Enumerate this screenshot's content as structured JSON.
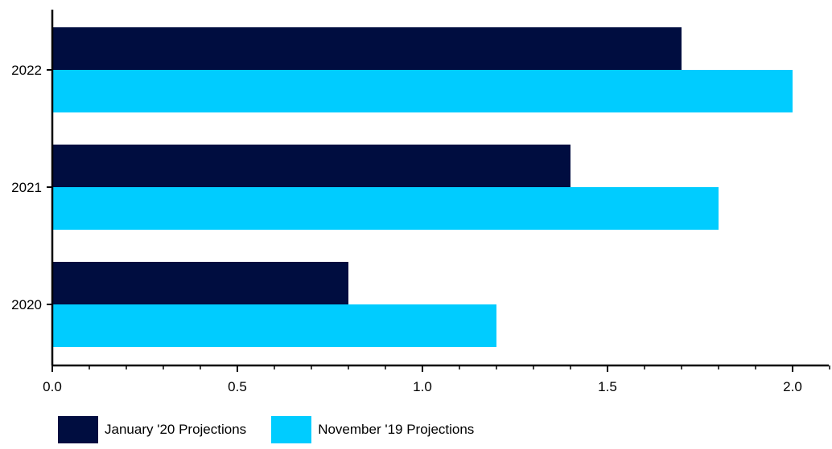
{
  "chart_data": {
    "type": "bar",
    "orientation": "horizontal",
    "categories": [
      "2020",
      "2021",
      "2022"
    ],
    "series": [
      {
        "name": "January '20 Projections",
        "values": [
          0.8,
          1.4,
          1.7
        ],
        "color": "#000d40"
      },
      {
        "name": "November '19 Projections",
        "values": [
          1.2,
          1.8,
          2.0
        ],
        "color": "#00ccff"
      }
    ],
    "xlim": [
      0,
      2.1
    ],
    "x_ticks": [
      "0.0",
      "0.5",
      "1.0",
      "1.5",
      "2.0"
    ],
    "grid": false,
    "legend_position": "bottom-left"
  }
}
